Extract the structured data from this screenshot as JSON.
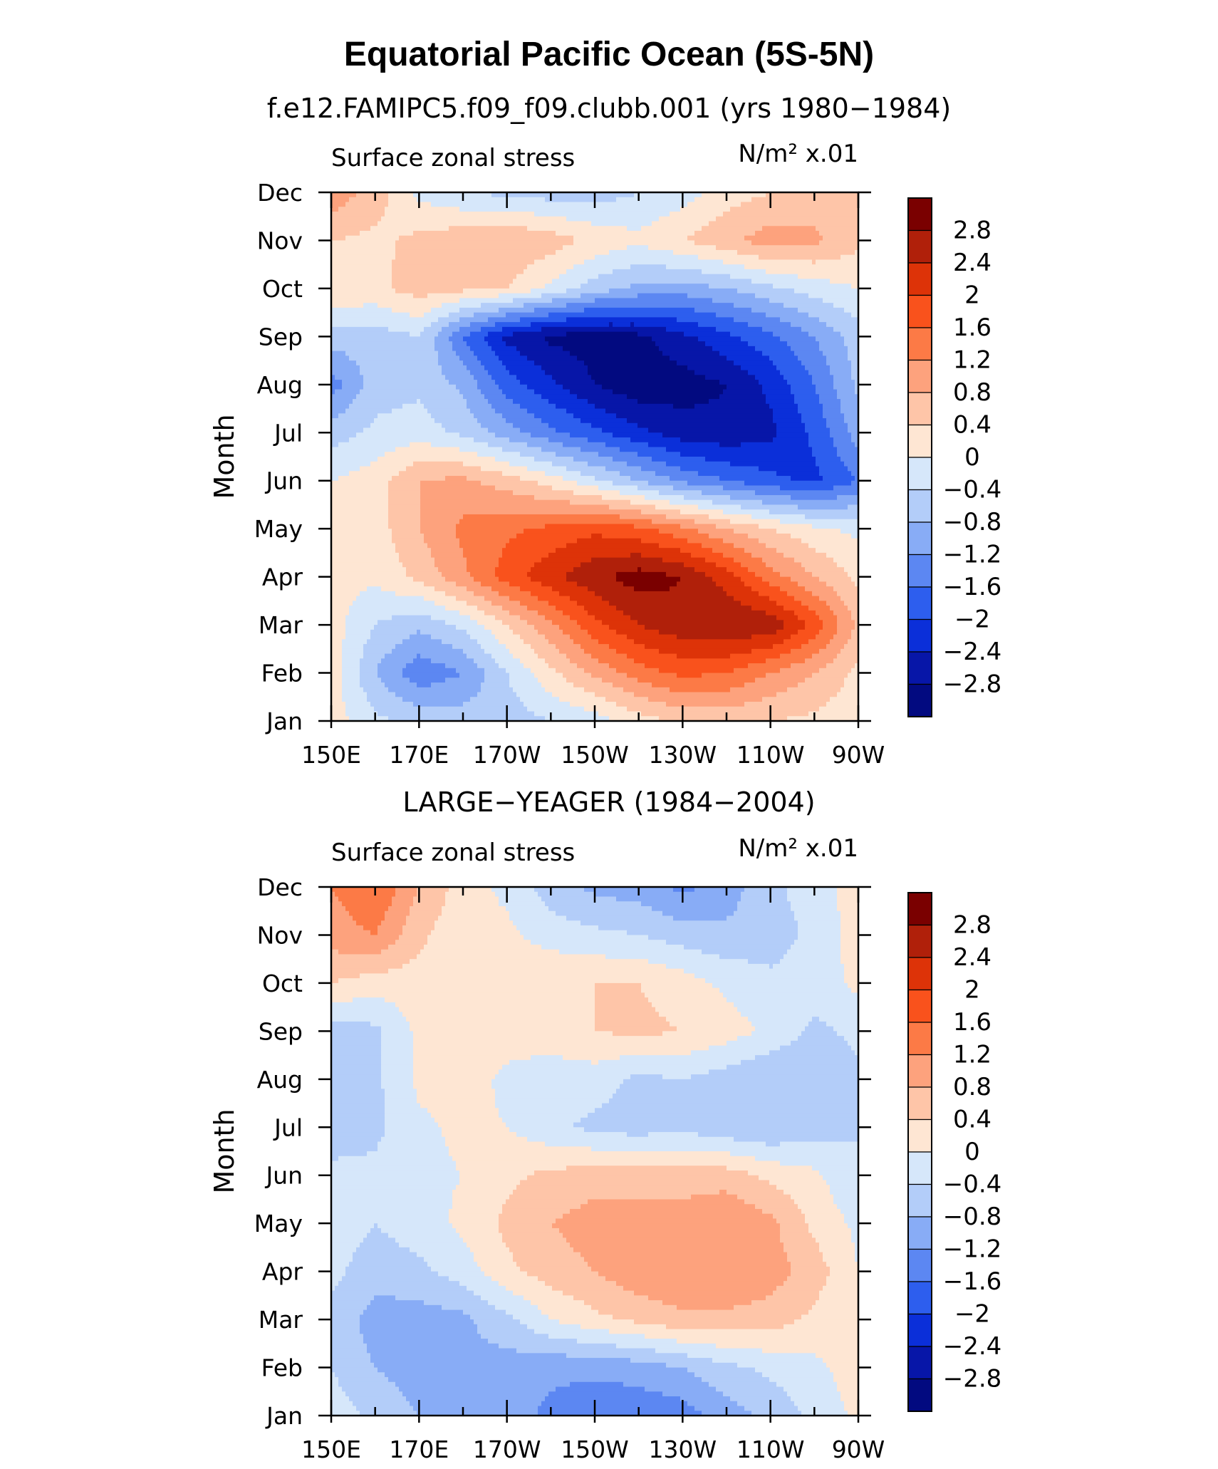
{
  "figure": {
    "title": "Equatorial Pacific Ocean (5S-5N)"
  },
  "colorbar": {
    "labels": [
      "2.8",
      "2.4",
      "2",
      "1.6",
      "1.2",
      "0.8",
      "0.4",
      "0",
      "−0.4",
      "−0.8",
      "−1.2",
      "−1.6",
      "−2",
      "−2.4",
      "−2.8"
    ],
    "colors": [
      "#7a0000",
      "#b0200a",
      "#dd3308",
      "#f9521c",
      "#fc7a46",
      "#fda27d",
      "#fec5a8",
      "#fee6d3",
      "#d6e7fa",
      "#b3cdf9",
      "#88acf6",
      "#5c87f2",
      "#2d5eee",
      "#0b2fd9",
      "#0716a8",
      "#020a80"
    ]
  },
  "chart_data": [
    {
      "type": "heatmap",
      "title": "f.e12.FAMIPC5.f09_f09.clubb.001 (yrs 1980−1984)",
      "left_label": "Surface zonal stress",
      "right_label": "N/m² x.01",
      "ylabel": "Month",
      "x_ticks": [
        "150E",
        "170E",
        "170W",
        "150W",
        "130W",
        "110W",
        "90W"
      ],
      "y_ticks": [
        "Jan",
        "Feb",
        "Mar",
        "Apr",
        "May",
        "Jun",
        "Jul",
        "Aug",
        "Sep",
        "Oct",
        "Nov",
        "Dec"
      ],
      "x": [
        150,
        160,
        170,
        180,
        190,
        200,
        210,
        220,
        230,
        240,
        250,
        260,
        270
      ],
      "y": [
        1,
        2,
        3,
        4,
        5,
        6,
        7,
        8,
        9,
        10,
        11,
        12
      ],
      "z": [
        [
          0.2,
          -0.3,
          -0.5,
          -0.6,
          -0.6,
          -0.4,
          -0.2,
          0.2,
          0.5,
          0.5,
          0.4,
          0.3,
          0.1
        ],
        [
          0.2,
          -0.8,
          -1.5,
          -1.2,
          -0.4,
          0.3,
          0.9,
          1.4,
          1.7,
          1.6,
          1.2,
          0.8,
          0.3
        ],
        [
          0.2,
          -0.4,
          -0.7,
          -0.3,
          0.4,
          1.1,
          1.9,
          2.4,
          2.7,
          2.8,
          2.7,
          1.9,
          0.7
        ],
        [
          0.1,
          0.1,
          0.5,
          1.1,
          1.8,
          2.3,
          2.7,
          3.0,
          2.8,
          2.2,
          1.4,
          0.8,
          0.3
        ],
        [
          0.0,
          0.2,
          0.8,
          1.3,
          1.5,
          1.7,
          1.9,
          1.7,
          1.3,
          0.8,
          0.4,
          0.1,
          -0.1
        ],
        [
          0.0,
          0.2,
          0.8,
          0.9,
          0.6,
          0.2,
          -0.3,
          -0.8,
          -1.3,
          -1.6,
          -1.9,
          -2.1,
          -1.6
        ],
        [
          -0.6,
          -0.3,
          -0.2,
          -0.5,
          -1.0,
          -1.5,
          -1.9,
          -2.3,
          -2.6,
          -2.7,
          -2.5,
          -1.9,
          -1.0
        ],
        [
          -1.4,
          -0.6,
          -0.5,
          -0.9,
          -1.8,
          -2.3,
          -2.8,
          -3.1,
          -3.0,
          -2.8,
          -2.3,
          -1.6,
          -0.7
        ],
        [
          -0.6,
          -0.6,
          -0.4,
          -1.6,
          -2.5,
          -2.9,
          -3.0,
          -2.9,
          -2.5,
          -2.1,
          -1.7,
          -1.2,
          -0.6
        ],
        [
          0.4,
          0.3,
          0.6,
          0.5,
          0.4,
          -0.1,
          -0.6,
          -0.9,
          -1.0,
          -0.8,
          -0.5,
          -0.2,
          0.0
        ],
        [
          0.4,
          0.3,
          0.5,
          0.7,
          0.8,
          0.6,
          0.3,
          0.1,
          0.4,
          0.7,
          1.0,
          0.9,
          0.5
        ],
        [
          1.1,
          0.6,
          -0.1,
          -0.4,
          -0.5,
          -0.6,
          -0.6,
          -0.4,
          -0.2,
          0.2,
          0.4,
          0.5,
          0.4
        ]
      ]
    },
    {
      "type": "heatmap",
      "title": "LARGE−YEAGER (1984−2004)",
      "left_label": "Surface zonal stress",
      "right_label": "N/m² x.01",
      "ylabel": "Month",
      "x_ticks": [
        "150E",
        "170E",
        "170W",
        "150W",
        "130W",
        "110W",
        "90W"
      ],
      "y_ticks": [
        "Jan",
        "Feb",
        "Mar",
        "Apr",
        "May",
        "Jun",
        "Jul",
        "Aug",
        "Sep",
        "Oct",
        "Nov",
        "Dec"
      ],
      "x": [
        150,
        160,
        170,
        180,
        190,
        200,
        210,
        220,
        230,
        240,
        250,
        260,
        270
      ],
      "y": [
        1,
        2,
        3,
        4,
        5,
        6,
        7,
        8,
        9,
        10,
        11,
        12
      ],
      "z": [
        [
          -0.2,
          -0.5,
          -0.8,
          -0.9,
          -1.0,
          -1.3,
          -1.5,
          -1.5,
          -1.4,
          -1.0,
          -0.7,
          -0.3,
          0.1
        ],
        [
          -0.4,
          -0.8,
          -1.0,
          -0.9,
          -1.0,
          -1.1,
          -1.1,
          -1.0,
          -0.8,
          -0.5,
          -0.3,
          -0.1,
          0.2
        ],
        [
          -0.5,
          -1.0,
          -1.0,
          -0.9,
          -0.5,
          0.0,
          0.3,
          0.5,
          0.7,
          0.7,
          0.6,
          0.3,
          0.0
        ],
        [
          -0.3,
          -0.6,
          -0.5,
          -0.2,
          0.3,
          0.6,
          0.8,
          1.1,
          1.2,
          1.2,
          1.0,
          0.6,
          0.0
        ],
        [
          -0.2,
          -0.4,
          -0.2,
          0.1,
          0.5,
          0.8,
          1.0,
          1.0,
          1.0,
          1.2,
          0.9,
          0.3,
          -0.1
        ],
        [
          -0.3,
          -0.3,
          -0.1,
          0.0,
          0.3,
          0.5,
          0.6,
          0.6,
          0.6,
          0.6,
          0.3,
          0.1,
          -0.4
        ],
        [
          -0.6,
          -0.5,
          -0.1,
          0.1,
          0.0,
          -0.3,
          -0.5,
          -0.6,
          -0.5,
          -0.7,
          -0.8,
          -0.6,
          -0.4
        ],
        [
          -0.8,
          -0.5,
          0.1,
          0.2,
          -0.1,
          -0.3,
          -0.2,
          -0.5,
          -0.4,
          -0.6,
          -0.8,
          -0.7,
          -0.5
        ],
        [
          -0.6,
          -0.5,
          0.1,
          0.2,
          0.2,
          0.3,
          0.4,
          0.5,
          0.4,
          0.2,
          -0.1,
          -0.5,
          -0.3
        ],
        [
          0.4,
          0.2,
          0.2,
          0.2,
          0.3,
          0.4,
          0.4,
          0.4,
          0.2,
          -0.1,
          -0.3,
          -0.2,
          0.1
        ],
        [
          1.0,
          1.2,
          0.5,
          0.1,
          0.1,
          -0.2,
          -0.3,
          -0.4,
          -0.6,
          -0.7,
          -0.6,
          -0.3,
          0.2
        ],
        [
          1.2,
          1.6,
          0.8,
          0.2,
          -0.1,
          -0.6,
          -0.9,
          -1.0,
          -1.3,
          -1.0,
          -0.5,
          -0.2,
          0.2
        ]
      ]
    }
  ]
}
